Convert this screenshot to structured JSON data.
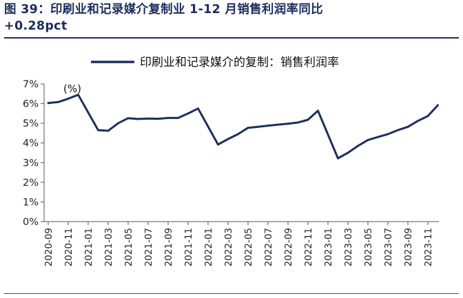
{
  "figure": {
    "title_line1": "图 39：印刷业和记录媒介复制业 1-12 月销售利润率同比",
    "title_line2": "+0.28pct"
  },
  "chart_data": {
    "type": "line",
    "title": "",
    "unit_label": "(%)",
    "ylim": [
      0,
      7
    ],
    "yticks": [
      "0%",
      "1%",
      "2%",
      "3%",
      "4%",
      "5%",
      "6%",
      "7%"
    ],
    "legend_position": "top",
    "grid": false,
    "x_tick_labels": [
      "2020-09",
      "2020-11",
      "2021-01",
      "2021-03",
      "2021-05",
      "2021-07",
      "2021-09",
      "2021-11",
      "2022-01",
      "2022-03",
      "2022-05",
      "2022-07",
      "2022-09",
      "2022-11",
      "2023-01",
      "2023-03",
      "2023-05",
      "2023-07",
      "2023-09",
      "2023-11"
    ],
    "x": [
      "2020-09",
      "2020-10",
      "2020-11",
      "2020-12",
      "2021-02",
      "2021-03",
      "2021-04",
      "2021-05",
      "2021-06",
      "2021-07",
      "2021-08",
      "2021-09",
      "2021-10",
      "2021-11",
      "2021-12",
      "2022-02",
      "2022-03",
      "2022-04",
      "2022-05",
      "2022-06",
      "2022-07",
      "2022-08",
      "2022-09",
      "2022-10",
      "2022-11",
      "2022-12",
      "2023-02",
      "2023-03",
      "2023-04",
      "2023-05",
      "2023-06",
      "2023-07",
      "2023-08",
      "2023-09",
      "2023-10",
      "2023-11",
      "2023-12"
    ],
    "series": [
      {
        "name": "印刷业和记录媒介的复制：销售利润率",
        "color": "#1f2e5e",
        "values": [
          6.03,
          6.08,
          6.25,
          6.45,
          4.65,
          4.62,
          5.0,
          5.26,
          5.22,
          5.24,
          5.23,
          5.27,
          5.27,
          5.5,
          5.75,
          3.92,
          4.2,
          4.45,
          4.77,
          4.82,
          4.88,
          4.93,
          4.98,
          5.04,
          5.18,
          5.64,
          3.22,
          3.5,
          3.85,
          4.15,
          4.3,
          4.45,
          4.65,
          4.82,
          5.12,
          5.37,
          5.92
        ]
      }
    ]
  }
}
